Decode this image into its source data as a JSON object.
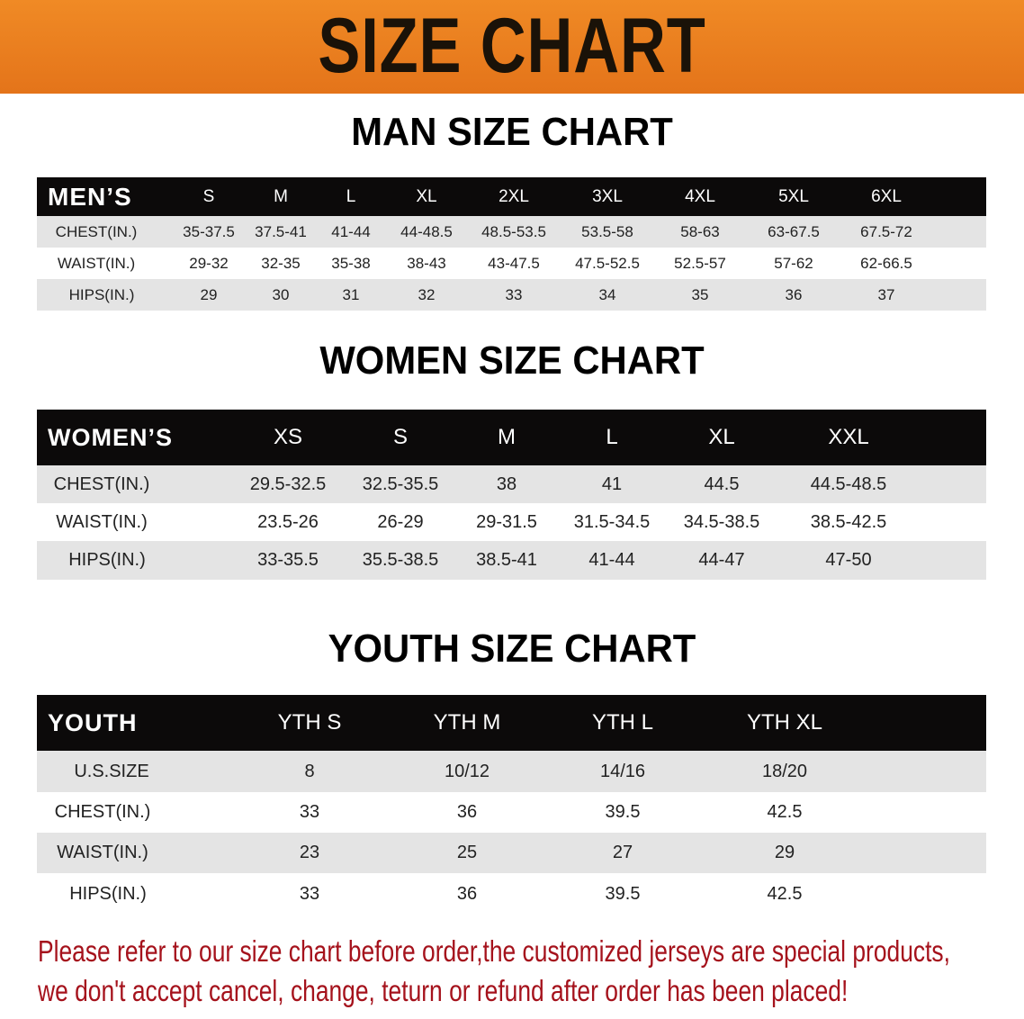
{
  "banner": {
    "title": "SIZE CHART"
  },
  "men": {
    "title": "MAN SIZE CHART",
    "headers": [
      "MEN’S",
      "S",
      "M",
      "L",
      "XL",
      "2XL",
      "3XL",
      "4XL",
      "5XL",
      "6XL"
    ],
    "rows": [
      [
        "CHEST(IN.)",
        "35-37.5",
        "37.5-41",
        "41-44",
        "44-48.5",
        "48.5-53.5",
        "53.5-58",
        "58-63",
        "63-67.5",
        "67.5-72"
      ],
      [
        "WAIST(IN.)",
        "29-32",
        "32-35",
        "35-38",
        "38-43",
        "43-47.5",
        "47.5-52.5",
        "52.5-57",
        "57-62",
        "62-66.5"
      ],
      [
        "HIPS(IN.)",
        "29",
        "30",
        "31",
        "32",
        "33",
        "34",
        "35",
        "36",
        "37"
      ]
    ]
  },
  "women": {
    "title": "WOMEN SIZE CHART",
    "headers": [
      "WOMEN’S",
      "XS",
      "S",
      "M",
      "L",
      "XL",
      "XXL"
    ],
    "rows": [
      [
        "CHEST(IN.)",
        "29.5-32.5",
        "32.5-35.5",
        "38",
        "41",
        "44.5",
        "44.5-48.5"
      ],
      [
        "WAIST(IN.)",
        "23.5-26",
        "26-29",
        "29-31.5",
        "31.5-34.5",
        "34.5-38.5",
        "38.5-42.5"
      ],
      [
        "HIPS(IN.)",
        "33-35.5",
        "35.5-38.5",
        "38.5-41",
        "41-44",
        "44-47",
        "47-50"
      ]
    ]
  },
  "youth": {
    "title": "YOUTH SIZE CHART",
    "headers": [
      "YOUTH",
      "YTH S",
      "YTH M",
      "YTH L",
      "YTH XL"
    ],
    "rows": [
      [
        "U.S.SIZE",
        "8",
        "10/12",
        "14/16",
        "18/20"
      ],
      [
        "CHEST(IN.)",
        "33",
        "36",
        "39.5",
        "42.5"
      ],
      [
        "WAIST(IN.)",
        "23",
        "25",
        "27",
        "29"
      ],
      [
        "HIPS(IN.)",
        "33",
        "36",
        "39.5",
        "42.5"
      ]
    ]
  },
  "footer": {
    "line1": "Please refer to our size chart before order,the customized jerseys are special products,",
    "line2": "we don't accept cancel, change, teturn or refund after order has been placed!"
  },
  "colors": {
    "banner": "#e97d1f",
    "header_row": "#0c0a0a",
    "stripe": "#e4e4e4",
    "notice": "#a5121c"
  }
}
